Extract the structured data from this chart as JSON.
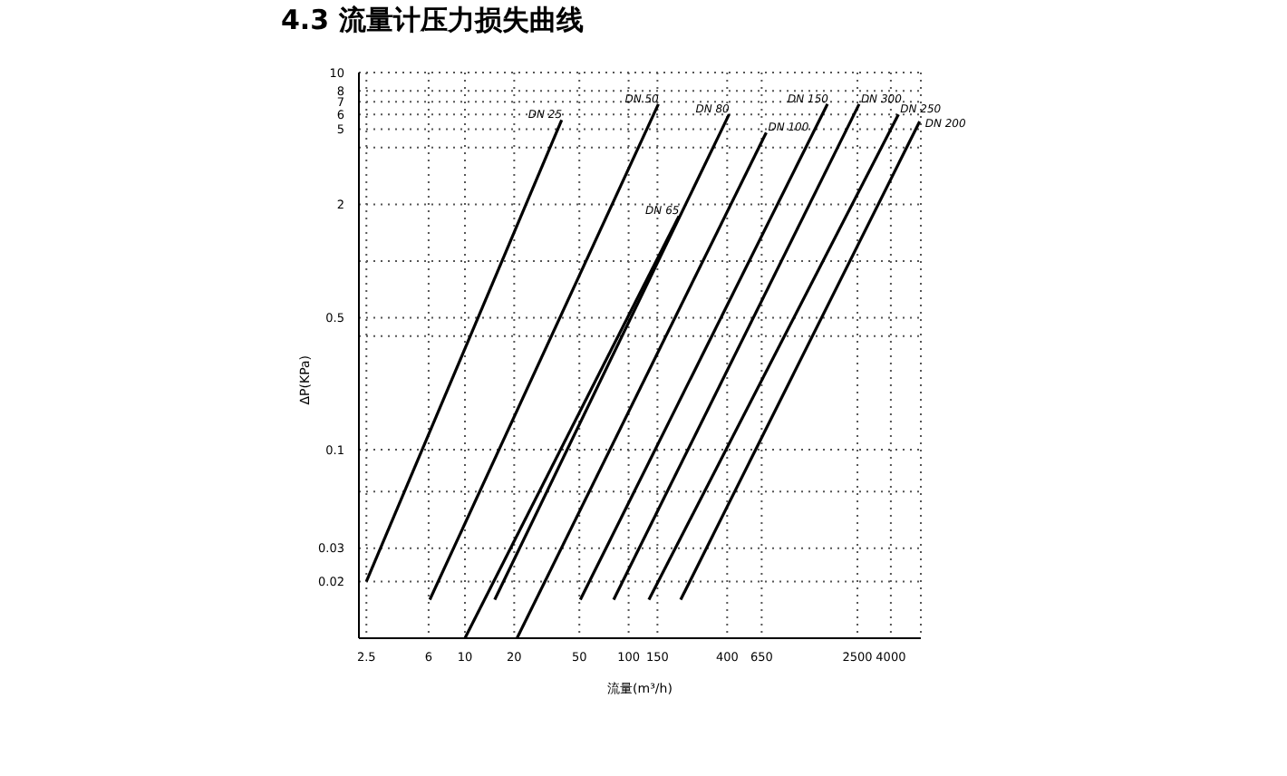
{
  "chart_data": {
    "type": "line",
    "title": "4.3 流量计压力损失曲线",
    "xlabel": "流量(m³/h)",
    "ylabel": "ΔP(KPa)",
    "log": "xy",
    "grid": true,
    "legend": false,
    "marker": "none",
    "line_style": "solid",
    "xlim": [
      2.25,
      6100
    ],
    "ylim": [
      0.01,
      10
    ],
    "xticks": [
      2.5,
      6,
      10,
      20,
      50,
      100,
      150,
      400,
      650,
      2500,
      4000
    ],
    "yticks": [
      0.02,
      0.03,
      {
        "value": 0.06,
        "label": null
      },
      0.1,
      {
        "value": 0.4,
        "label": null
      },
      0.5,
      {
        "value": 1,
        "label": null
      },
      2,
      {
        "value": 4,
        "label": null
      },
      5,
      6,
      7,
      8,
      10
    ],
    "series": [
      {
        "name": "DN 25",
        "color": "#000000",
        "x": [
          2.5,
          39
        ],
        "values": [
          0.02,
          5.6
        ]
      },
      {
        "name": "DN 50",
        "color": "#000000",
        "x": [
          6.1,
          152
        ],
        "values": [
          0.016,
          6.8
        ]
      },
      {
        "name": "DN 65",
        "color": "#000000",
        "x": [
          10,
          203
        ],
        "values": [
          0.01,
          1.73
        ]
      },
      {
        "name": "DN 80",
        "color": "#000000",
        "x": [
          15.2,
          411
        ],
        "values": [
          0.016,
          6
        ]
      },
      {
        "name": "DN 100",
        "color": "#000000",
        "x": [
          20.8,
          693
        ],
        "values": [
          0.01,
          4.8
        ]
      },
      {
        "name": "DN 150",
        "color": "#000000",
        "x": [
          50.7,
          1640
        ],
        "values": [
          0.016,
          6.8
        ]
      },
      {
        "name": "DN 300",
        "color": "#000000",
        "x": [
          81,
          2560
        ],
        "values": [
          0.016,
          6.8
        ]
      },
      {
        "name": "DN 250",
        "color": "#000000",
        "x": [
          133,
          4450
        ],
        "values": [
          0.016,
          6
        ]
      },
      {
        "name": "DN 200",
        "color": "#000000",
        "x": [
          208,
          6000
        ],
        "values": [
          0.016,
          5.5
        ]
      }
    ]
  }
}
